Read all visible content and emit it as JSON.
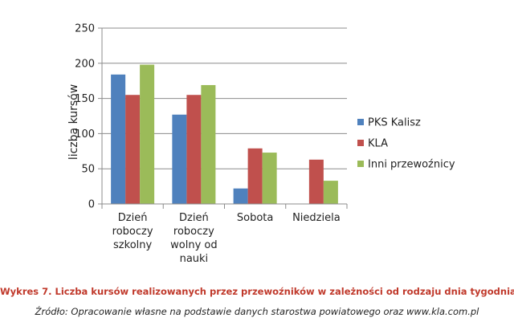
{
  "chart_data": {
    "type": "bar",
    "categories": [
      [
        "Dzień",
        "roboczy",
        "szkolny"
      ],
      [
        "Dzień",
        "roboczy",
        "wolny od",
        "nauki"
      ],
      [
        "Sobota"
      ],
      [
        "Niedziela"
      ]
    ],
    "series": [
      {
        "name": "PKS Kalisz",
        "color": "#4f81bd",
        "values": [
          184,
          127,
          22,
          0
        ]
      },
      {
        "name": "KLA",
        "color": "#c0504d",
        "values": [
          155,
          155,
          79,
          63
        ]
      },
      {
        "name": "Inni przewoźnicy",
        "color": "#9bbb59",
        "values": [
          198,
          169,
          73,
          33
        ]
      }
    ],
    "ylabel": "liczba kursów",
    "ylim": [
      0,
      250
    ],
    "yticks": [
      0,
      50,
      100,
      150,
      200,
      250
    ],
    "grid": true,
    "legend": "right"
  },
  "caption": "Wykres 7. Liczba kursów realizowanych przez przewoźników w zależności od rodzaju dnia tygodnia",
  "source": "Źródło: Opracowanie własne na podstawie danych starostwa powiatowego oraz www.kla.com.pl"
}
